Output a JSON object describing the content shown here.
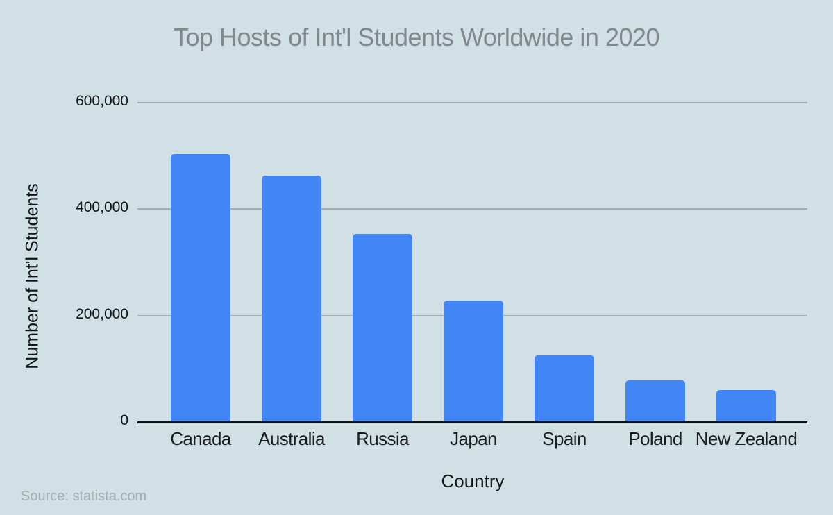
{
  "page": {
    "background_color": "#D1E0E4",
    "source_note": "Source: statista.com"
  },
  "chart_data": {
    "type": "bar",
    "title": "Top Hosts of Int'l Students Worldwide in 2020",
    "xlabel": "Country",
    "ylabel": "Number of Int'l Students",
    "categories": [
      "Canada",
      "Australia",
      "Russia",
      "Japan",
      "Spain",
      "Poland",
      "New Zealand"
    ],
    "values": [
      503000,
      463000,
      353000,
      228000,
      125000,
      78000,
      60000
    ],
    "y_ticks": [
      "600,000",
      "400,000",
      "200,000",
      "0"
    ],
    "y_tick_values": [
      600000,
      400000,
      200000,
      0
    ],
    "ylim": [
      0,
      600000
    ],
    "grid": "horizontal-only",
    "legend": "none",
    "bar_color": "#4285F4",
    "gridline_color": "#A3ACAE",
    "axis_line_color": "#101314",
    "title_color": "#82888B",
    "source_color": "#A6AEB1"
  }
}
